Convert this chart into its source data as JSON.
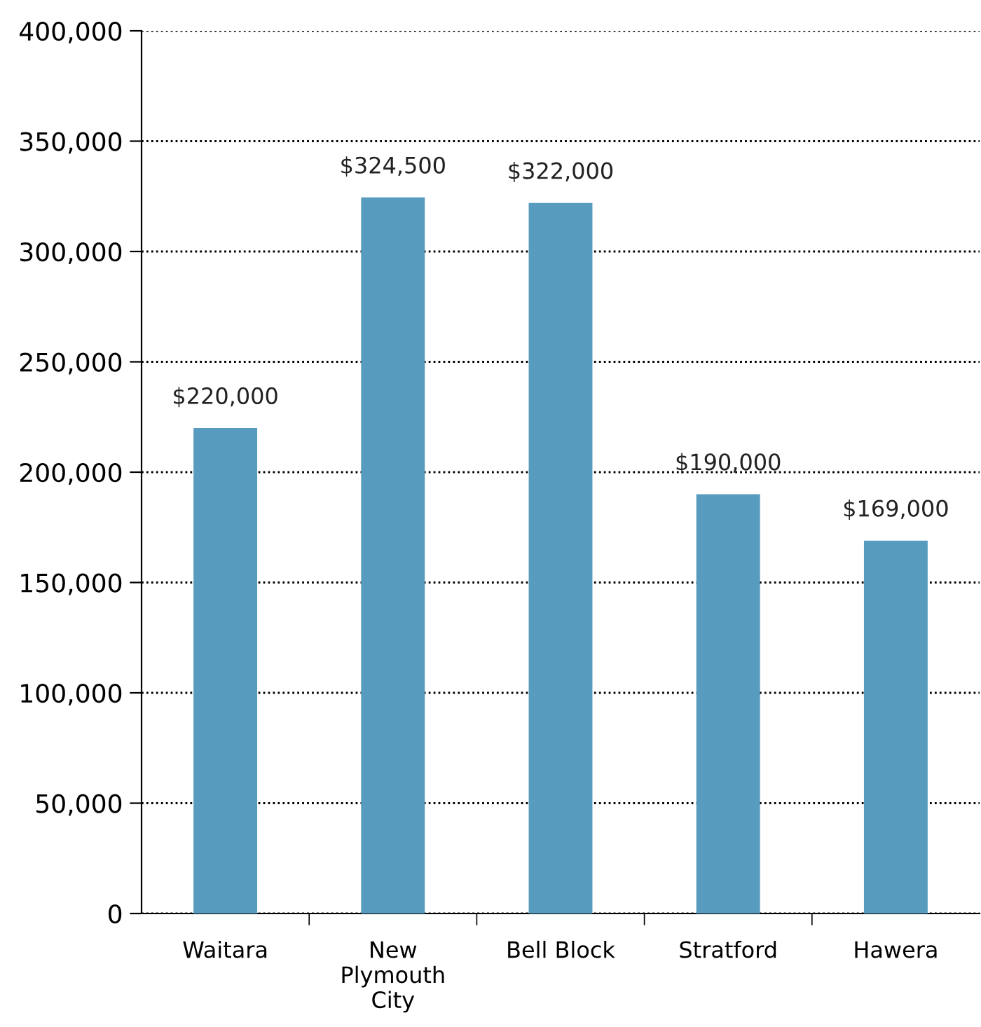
{
  "chart_data": {
    "type": "bar",
    "categories": [
      "Waitara",
      "New\nPlymouth\nCity",
      "Bell Block",
      "Stratford",
      "Hawera"
    ],
    "values": [
      220000,
      324500,
      322000,
      190000,
      169000
    ],
    "value_labels": [
      "$220,000",
      "$324,500",
      "$322,000",
      "$190,000",
      "$169,000"
    ],
    "color": "#579bbf",
    "ylim": [
      0,
      400000
    ],
    "yticks": [
      0,
      {
        "value": 50000,
        "label": "50,000"
      },
      {
        "value": 100000,
        "label": "100,000"
      },
      {
        "value": 150000,
        "label": "150,000"
      },
      {
        "value": 200000,
        "label": "200,000"
      },
      {
        "value": 250000,
        "label": "250,000"
      },
      {
        "value": 300000,
        "label": "300,000"
      },
      {
        "value": 350000,
        "label": "350,000"
      },
      {
        "value": 400000,
        "label": "400,000"
      }
    ],
    "grid": "y",
    "legend": false
  }
}
